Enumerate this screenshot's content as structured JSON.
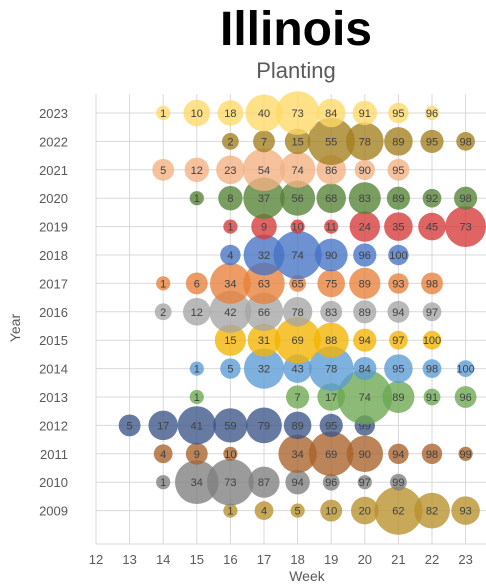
{
  "chart_data": {
    "type": "bubble",
    "title": "Illinois",
    "subtitle": "Planting",
    "xlabel": "Week",
    "ylabel": "Year",
    "xlim": [
      12,
      23
    ],
    "x_ticks": [
      12,
      13,
      14,
      15,
      16,
      17,
      18,
      19,
      20,
      21,
      22,
      23
    ],
    "grid": true,
    "series": [
      {
        "year": "2009",
        "color": "#b8902a",
        "points": [
          {
            "x": 16,
            "label": "1",
            "size": 1
          },
          {
            "x": 17,
            "label": "4",
            "size": 3
          },
          {
            "x": 18,
            "label": "5",
            "size": 1
          },
          {
            "x": 19,
            "label": "10",
            "size": 5
          },
          {
            "x": 20,
            "label": "20",
            "size": 10
          },
          {
            "x": 21,
            "label": "62",
            "size": 42
          },
          {
            "x": 22,
            "label": "82",
            "size": 20
          },
          {
            "x": 23,
            "label": "93",
            "size": 11
          }
        ]
      },
      {
        "year": "2010",
        "color": "#7f7f7f",
        "points": [
          {
            "x": 14,
            "label": "1",
            "size": 1
          },
          {
            "x": 15,
            "label": "34",
            "size": 33
          },
          {
            "x": 16,
            "label": "73",
            "size": 39
          },
          {
            "x": 17,
            "label": "87",
            "size": 14
          },
          {
            "x": 18,
            "label": "94",
            "size": 7
          },
          {
            "x": 19,
            "label": "96",
            "size": 2
          },
          {
            "x": 20,
            "label": "97",
            "size": 1
          },
          {
            "x": 21,
            "label": "99",
            "size": 2
          }
        ]
      },
      {
        "year": "2011",
        "color": "#a8622a",
        "points": [
          {
            "x": 14,
            "label": "4",
            "size": 3
          },
          {
            "x": 15,
            "label": "9",
            "size": 5
          },
          {
            "x": 16,
            "label": "10",
            "size": 1
          },
          {
            "x": 18,
            "label": "34",
            "size": 24
          },
          {
            "x": 19,
            "label": "69",
            "size": 35
          },
          {
            "x": 20,
            "label": "90",
            "size": 21
          },
          {
            "x": 21,
            "label": "94",
            "size": 4
          },
          {
            "x": 22,
            "label": "98",
            "size": 4
          },
          {
            "x": 23,
            "label": "99",
            "size": 1
          }
        ]
      },
      {
        "year": "2012",
        "color": "#3b5588",
        "points": [
          {
            "x": 13,
            "label": "5",
            "size": 5
          },
          {
            "x": 14,
            "label": "17",
            "size": 12
          },
          {
            "x": 15,
            "label": "41",
            "size": 24
          },
          {
            "x": 16,
            "label": "59",
            "size": 18
          },
          {
            "x": 17,
            "label": "79",
            "size": 20
          },
          {
            "x": 18,
            "label": "89",
            "size": 10
          },
          {
            "x": 19,
            "label": "95",
            "size": 6
          },
          {
            "x": 20,
            "label": "99",
            "size": 4
          }
        ]
      },
      {
        "year": "2013",
        "color": "#6aa84f",
        "points": [
          {
            "x": 15,
            "label": "1",
            "size": 1
          },
          {
            "x": 18,
            "label": "7",
            "size": 6
          },
          {
            "x": 19,
            "label": "17",
            "size": 10
          },
          {
            "x": 20,
            "label": "74",
            "size": 57
          },
          {
            "x": 21,
            "label": "89",
            "size": 15
          },
          {
            "x": 22,
            "label": "91",
            "size": 2
          },
          {
            "x": 23,
            "label": "96",
            "size": 5
          }
        ]
      },
      {
        "year": "2014",
        "color": "#5b9bd5",
        "points": [
          {
            "x": 15,
            "label": "1",
            "size": 1
          },
          {
            "x": 16,
            "label": "5",
            "size": 4
          },
          {
            "x": 17,
            "label": "32",
            "size": 27
          },
          {
            "x": 18,
            "label": "43",
            "size": 11
          },
          {
            "x": 19,
            "label": "78",
            "size": 35
          },
          {
            "x": 20,
            "label": "84",
            "size": 6
          },
          {
            "x": 21,
            "label": "95",
            "size": 11
          },
          {
            "x": 22,
            "label": "98",
            "size": 3
          },
          {
            "x": 23,
            "label": "100",
            "size": 2
          }
        ]
      },
      {
        "year": "2015",
        "color": "#f4b400",
        "points": [
          {
            "x": 16,
            "label": "15",
            "size": 14
          },
          {
            "x": 17,
            "label": "31",
            "size": 16
          },
          {
            "x": 18,
            "label": "69",
            "size": 38
          },
          {
            "x": 19,
            "label": "88",
            "size": 19
          },
          {
            "x": 20,
            "label": "94",
            "size": 6
          },
          {
            "x": 21,
            "label": "97",
            "size": 3
          },
          {
            "x": 22,
            "label": "100",
            "size": 3
          }
        ]
      },
      {
        "year": "2016",
        "color": "#a5a5a5",
        "points": [
          {
            "x": 14,
            "label": "2",
            "size": 2
          },
          {
            "x": 15,
            "label": "12",
            "size": 10
          },
          {
            "x": 16,
            "label": "42",
            "size": 30
          },
          {
            "x": 17,
            "label": "66",
            "size": 24
          },
          {
            "x": 18,
            "label": "78",
            "size": 12
          },
          {
            "x": 19,
            "label": "83",
            "size": 5
          },
          {
            "x": 20,
            "label": "89",
            "size": 6
          },
          {
            "x": 21,
            "label": "94",
            "size": 5
          },
          {
            "x": 22,
            "label": "97",
            "size": 3
          }
        ]
      },
      {
        "year": "2017",
        "color": "#e8803a",
        "points": [
          {
            "x": 14,
            "label": "1",
            "size": 1
          },
          {
            "x": 15,
            "label": "6",
            "size": 5
          },
          {
            "x": 16,
            "label": "34",
            "size": 28
          },
          {
            "x": 17,
            "label": "63",
            "size": 29
          },
          {
            "x": 18,
            "label": "65",
            "size": 2
          },
          {
            "x": 19,
            "label": "75",
            "size": 10
          },
          {
            "x": 20,
            "label": "89",
            "size": 14
          },
          {
            "x": 21,
            "label": "93",
            "size": 4
          },
          {
            "x": 22,
            "label": "98",
            "size": 5
          }
        ]
      },
      {
        "year": "2018",
        "color": "#4472c4",
        "points": [
          {
            "x": 16,
            "label": "4",
            "size": 4
          },
          {
            "x": 17,
            "label": "32",
            "size": 28
          },
          {
            "x": 18,
            "label": "74",
            "size": 42
          },
          {
            "x": 19,
            "label": "90",
            "size": 16
          },
          {
            "x": 20,
            "label": "96",
            "size": 6
          },
          {
            "x": 21,
            "label": "100",
            "size": 4
          }
        ]
      },
      {
        "year": "2019",
        "color": "#d63a3a",
        "points": [
          {
            "x": 16,
            "label": "1",
            "size": 1
          },
          {
            "x": 17,
            "label": "9",
            "size": 8
          },
          {
            "x": 18,
            "label": "10",
            "size": 1
          },
          {
            "x": 19,
            "label": "11",
            "size": 1
          },
          {
            "x": 20,
            "label": "24",
            "size": 13
          },
          {
            "x": 21,
            "label": "35",
            "size": 11
          },
          {
            "x": 22,
            "label": "45",
            "size": 10
          },
          {
            "x": 23,
            "label": "73",
            "size": 28
          }
        ]
      },
      {
        "year": "2020",
        "color": "#548235",
        "points": [
          {
            "x": 15,
            "label": "1",
            "size": 1
          },
          {
            "x": 16,
            "label": "8",
            "size": 7
          },
          {
            "x": 17,
            "label": "37",
            "size": 29
          },
          {
            "x": 18,
            "label": "56",
            "size": 19
          },
          {
            "x": 19,
            "label": "68",
            "size": 12
          },
          {
            "x": 20,
            "label": "83",
            "size": 15
          },
          {
            "x": 21,
            "label": "89",
            "size": 6
          },
          {
            "x": 22,
            "label": "92",
            "size": 3
          },
          {
            "x": 23,
            "label": "98",
            "size": 6
          }
        ]
      },
      {
        "year": "2021",
        "color": "#f4b183",
        "points": [
          {
            "x": 14,
            "label": "5",
            "size": 5
          },
          {
            "x": 15,
            "label": "12",
            "size": 7
          },
          {
            "x": 16,
            "label": "23",
            "size": 11
          },
          {
            "x": 17,
            "label": "54",
            "size": 31
          },
          {
            "x": 18,
            "label": "74",
            "size": 20
          },
          {
            "x": 19,
            "label": "86",
            "size": 12
          },
          {
            "x": 20,
            "label": "90",
            "size": 4
          },
          {
            "x": 21,
            "label": "95",
            "size": 5
          }
        ]
      },
      {
        "year": "2022",
        "color": "#a37f1d",
        "points": [
          {
            "x": 16,
            "label": "2",
            "size": 2
          },
          {
            "x": 17,
            "label": "7",
            "size": 5
          },
          {
            "x": 18,
            "label": "15",
            "size": 8
          },
          {
            "x": 19,
            "label": "55",
            "size": 40
          },
          {
            "x": 20,
            "label": "78",
            "size": 23
          },
          {
            "x": 21,
            "label": "89",
            "size": 11
          },
          {
            "x": 22,
            "label": "95",
            "size": 6
          },
          {
            "x": 23,
            "label": "98",
            "size": 3
          }
        ]
      },
      {
        "year": "2023",
        "color": "#ffd966",
        "points": [
          {
            "x": 14,
            "label": "1",
            "size": 1
          },
          {
            "x": 15,
            "label": "10",
            "size": 9
          },
          {
            "x": 16,
            "label": "18",
            "size": 8
          },
          {
            "x": 17,
            "label": "40",
            "size": 22
          },
          {
            "x": 18,
            "label": "73",
            "size": 33
          },
          {
            "x": 19,
            "label": "84",
            "size": 11
          },
          {
            "x": 20,
            "label": "91",
            "size": 7
          },
          {
            "x": 21,
            "label": "95",
            "size": 4
          },
          {
            "x": 22,
            "label": "96",
            "size": 1
          }
        ]
      }
    ]
  }
}
